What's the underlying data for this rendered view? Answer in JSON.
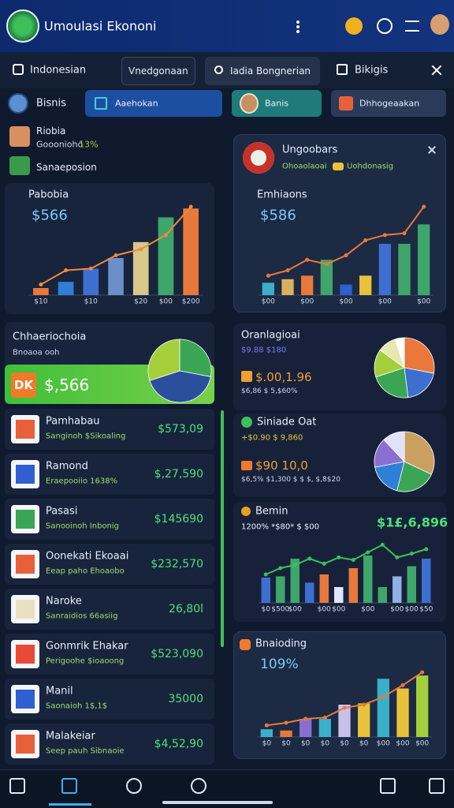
{
  "header": {
    "title": "Umoulasi Ekononi"
  },
  "tabs": [
    "Indonesian",
    "Vnedgonaan",
    "Iadia Bongnerian",
    "Bikigis"
  ],
  "filters": [
    "Bisnis",
    "Aaehokan",
    "Banis",
    "Dhhogeaakan"
  ],
  "left": {
    "list": [
      {
        "name": "Riobia",
        "sub": "Gooonioho",
        "badge": "13%"
      },
      {
        "name": "Sanaeposion"
      }
    ],
    "summary": {
      "title": "Chhaeriochoia",
      "sub": "Bnoaoa ooh",
      "icon": "DK",
      "value": "$,566"
    },
    "items": [
      {
        "name": "Pamhabau",
        "sub": "Sanginoh $Sikoaling",
        "value": "$573,09"
      },
      {
        "name": "Ramond",
        "sub": "Eraepooiio 1638%",
        "value": "$,27,590"
      },
      {
        "name": "Pasasi",
        "sub": "Sanooinoh Inbonig",
        "value": "$145690"
      },
      {
        "name": "Oonekati Ekoaai",
        "sub": "Eeap paho Ehoaobo",
        "value": "$232,570"
      },
      {
        "name": "Naroke",
        "sub": "Sanraidios 66asiig",
        "value": "26,80l"
      },
      {
        "name": "Gonmrik Ehakar",
        "sub": "Perigoohe $ioaoong",
        "value": "$523,090"
      },
      {
        "name": "Manil",
        "sub": "Saonaioh 1$,1$",
        "value": "35000"
      },
      {
        "name": "Malakeiar",
        "sub": "Seep pauh Sibnaoie",
        "value": "$4,52,90"
      }
    ]
  },
  "right": {
    "card": {
      "title": "Ungoobars",
      "sub": "Ohoaolaoai",
      "tag": "Uohdonasig"
    },
    "panels": [
      {
        "title": "Oranlagioai",
        "sub": "$9.88 $180",
        "value": "$.00,1.96",
        "note": "$6,86 $ 5,$60%"
      },
      {
        "title": "Siniade Oat",
        "sub": "+$0.90 $ 9,860",
        "value": "$90 10,0",
        "note": "$6,5% $1,300 $ $ $, $,8$20"
      }
    ]
  },
  "chart_data": [
    {
      "type": "bar",
      "title": "Pabobia",
      "annotation": "$566",
      "ylim": [
        0,
        100
      ],
      "categories": [
        "$10",
        null,
        "$10",
        null,
        "$20",
        "$00",
        "$200"
      ],
      "values": [
        8,
        15,
        30,
        42,
        60,
        88,
        98
      ],
      "colors": [
        "#e8793a",
        "#2f7fd6",
        "#3d6fd1",
        "#6b8fc9",
        "#d8c98a",
        "#3fa66b",
        "#e8793a"
      ],
      "line": {
        "color": "#f08a3c",
        "values": [
          12,
          28,
          30,
          45,
          52,
          68,
          100
        ]
      }
    },
    {
      "type": "pie",
      "values": [
        28,
        42,
        30
      ],
      "colors": [
        "#3aa655",
        "#2b4f9c",
        "#a5cf3a"
      ]
    },
    {
      "type": "bar",
      "title": "Emhiaons",
      "annotation": "$586",
      "ylim": [
        0,
        100
      ],
      "categories": [
        "$00",
        null,
        "$00",
        null,
        "$00",
        null,
        "$00",
        null,
        "$00"
      ],
      "values": [
        14,
        18,
        22,
        40,
        12,
        22,
        58,
        58,
        80
      ],
      "colors": [
        "#3ab0c8",
        "#d8b060",
        "#e8793a",
        "#3fa66b",
        "#2f5fd0",
        "#e8c23a",
        "#3d6fd1",
        "#3fa66b",
        "#3fa66b"
      ],
      "line": {
        "color": "#e8793a",
        "values": [
          22,
          28,
          40,
          35,
          45,
          62,
          68,
          70,
          100
        ]
      }
    },
    {
      "type": "pie",
      "values": [
        28,
        20,
        22,
        15,
        10,
        5
      ],
      "colors": [
        "#e8793a",
        "#3d6fd1",
        "#3aa655",
        "#a5cf3a",
        "#e6e8b0",
        "#ffffff"
      ]
    },
    {
      "type": "pie",
      "values": [
        32,
        22,
        18,
        16,
        12
      ],
      "colors": [
        "#c9a060",
        "#3aa655",
        "#2f7fd6",
        "#8a6fd0",
        "#e0e0ff"
      ]
    },
    {
      "type": "bar",
      "title": "Bemin",
      "subtitle": "1200% *$80* $ $00",
      "annotation": "$1£,6,896",
      "ylim": [
        0,
        100
      ],
      "categories": [
        "$0",
        "$500",
        "$00",
        null,
        "$00",
        "$00",
        null,
        "$00",
        null,
        "$00",
        "$00",
        "$50"
      ],
      "values": [
        40,
        42,
        70,
        32,
        45,
        25,
        55,
        75,
        25,
        42,
        58,
        70
      ],
      "colors": [
        "#3d6fd1",
        "#3fa66b",
        "#3fa66b",
        "#3d6fd1",
        "#e8793a",
        "#dfe6ff",
        "#e8793a",
        "#3fa66b",
        "#3fa66b",
        "#8fb0e8",
        "#3fa66b",
        "#3d6fd1"
      ],
      "line": {
        "color": "#3fbf5a",
        "values": [
          45,
          55,
          60,
          70,
          62,
          72,
          68,
          80,
          92,
          72,
          78,
          85
        ]
      }
    },
    {
      "type": "bar",
      "title": "Bnaioding",
      "annotation": "109%",
      "ylim": [
        0,
        100
      ],
      "categories": [
        "$0",
        "$0",
        "$0",
        "$0",
        "$0",
        "$0",
        "$00",
        "$00",
        "$00"
      ],
      "values": [
        12,
        10,
        28,
        28,
        50,
        52,
        90,
        75,
        95
      ],
      "colors": [
        "#3ab0c8",
        "#e8793a",
        "#8a6fd0",
        "#3ab0c8",
        "#c8c0e8",
        "#e8c23a",
        "#3ab0c8",
        "#e8c23a",
        "#a5cf3a"
      ],
      "line": {
        "color": "#e8793a",
        "values": [
          18,
          22,
          28,
          30,
          45,
          50,
          62,
          80,
          100
        ]
      }
    }
  ]
}
